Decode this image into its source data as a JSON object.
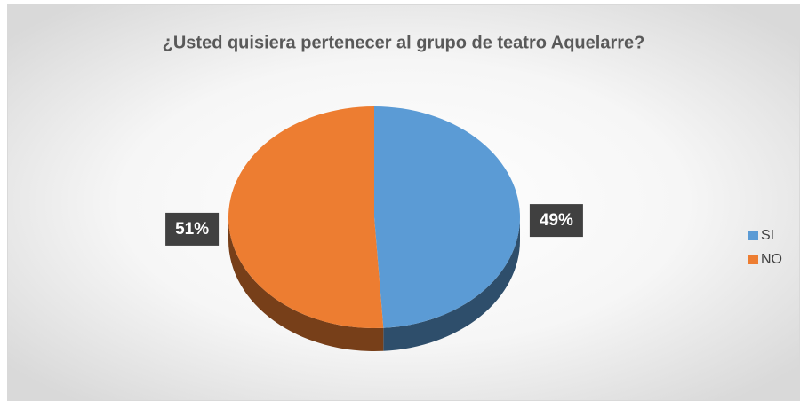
{
  "chart_data": {
    "type": "pie",
    "title": "¿Usted quisiera pertenecer al grupo de teatro Aquelarre?",
    "categories": [
      "SI",
      "NO"
    ],
    "values": [
      49,
      51
    ],
    "value_labels": [
      "49%",
      "51%"
    ],
    "colors": [
      "#5b9bd5",
      "#ed7d31"
    ],
    "legend": "right"
  }
}
